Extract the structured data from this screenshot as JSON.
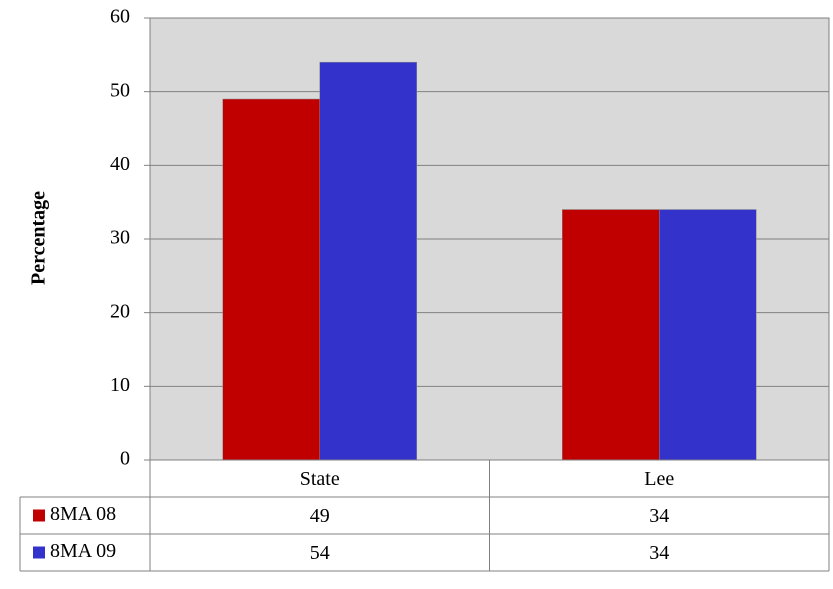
{
  "chart_data": {
    "type": "bar",
    "categories": [
      "State",
      "Lee"
    ],
    "series": [
      {
        "name": "8MA 08",
        "values": [
          49,
          34
        ],
        "color": "#C00000"
      },
      {
        "name": "8MA 09",
        "values": [
          54,
          34
        ],
        "color": "#3333CC"
      }
    ],
    "ylabel": "Percentage",
    "ylim": [
      0,
      60
    ],
    "yticks": [
      0,
      10,
      20,
      30,
      40,
      50,
      60
    ],
    "grid": true,
    "plot_background": "#D9D9D9",
    "legend": "data-table-left"
  }
}
